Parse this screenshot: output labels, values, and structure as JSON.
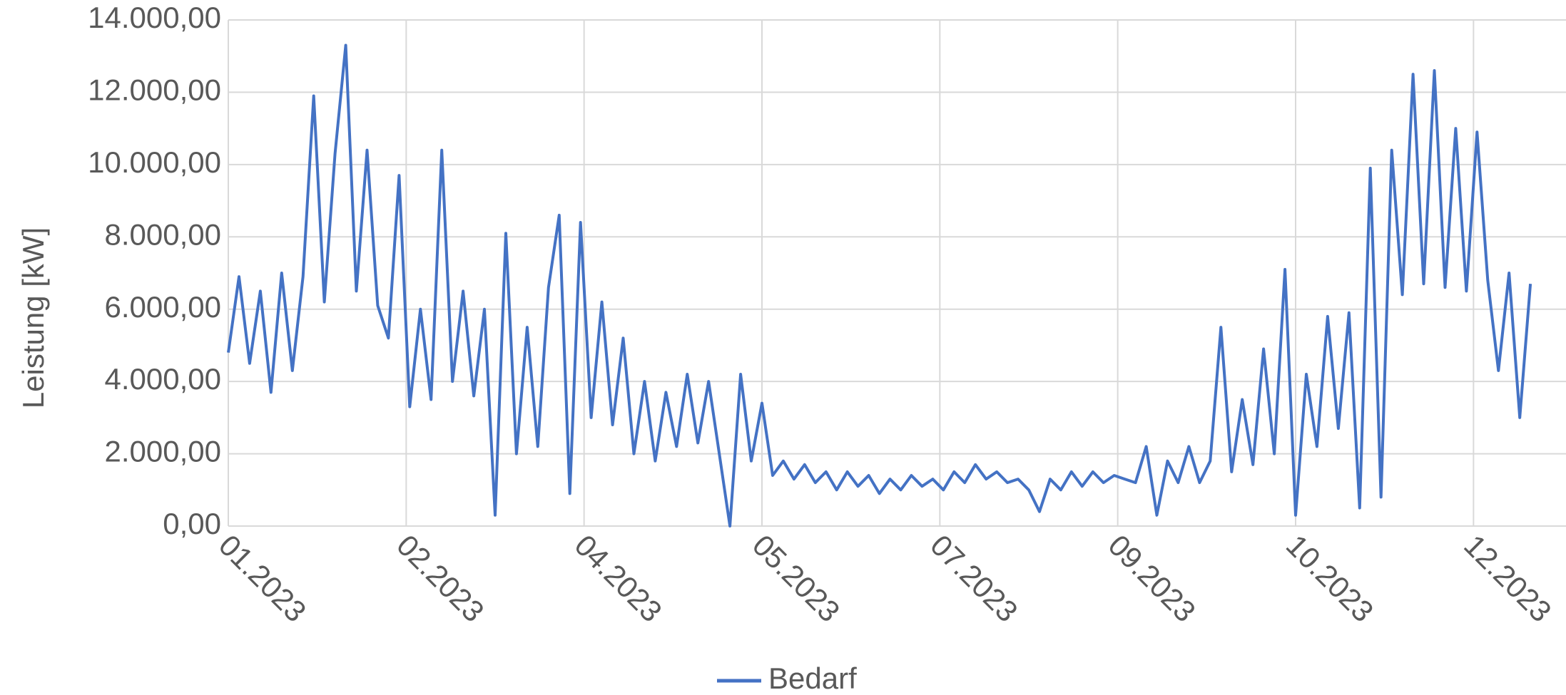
{
  "chart_data": {
    "type": "line",
    "y_label": "Leistung [kW]",
    "x": [
      0,
      3,
      6,
      9,
      12,
      15,
      18,
      21,
      24,
      27,
      30,
      33,
      36,
      39,
      42,
      45,
      48,
      51,
      54,
      57,
      60,
      63,
      66,
      69,
      72,
      75,
      78,
      81,
      84,
      87,
      90,
      93,
      96,
      99,
      102,
      105,
      108,
      111,
      114,
      117,
      120,
      123,
      126,
      129,
      132,
      135,
      138,
      141,
      144,
      147,
      150,
      153,
      156,
      159,
      162,
      165,
      168,
      171,
      174,
      177,
      180,
      183,
      186,
      189,
      192,
      195,
      198,
      201,
      204,
      207,
      210,
      213,
      216,
      219,
      222,
      225,
      228,
      231,
      234,
      237,
      240,
      243,
      246,
      249,
      252,
      255,
      258,
      261,
      264,
      267,
      270,
      273,
      276,
      279,
      282,
      285,
      288,
      291,
      294,
      297,
      300,
      303,
      306,
      309,
      312,
      315,
      318,
      321,
      324,
      327,
      330,
      333,
      336,
      339,
      342,
      345,
      348,
      351,
      354,
      357,
      360,
      363,
      366
    ],
    "series": [
      {
        "name": "Bedarf",
        "color": "#4472c4",
        "values": [
          4800,
          6900,
          4500,
          6500,
          3700,
          7000,
          4300,
          6900,
          11900,
          6200,
          10300,
          13300,
          6500,
          10400,
          6100,
          5200,
          9700,
          3300,
          6000,
          3500,
          10400,
          4000,
          6500,
          3600,
          6000,
          300,
          8100,
          2000,
          5500,
          2200,
          6600,
          8600,
          900,
          8400,
          3000,
          6200,
          2800,
          5200,
          2000,
          4000,
          1800,
          3700,
          2200,
          4200,
          2300,
          4000,
          2000,
          0,
          4200,
          1800,
          3400,
          1400,
          1800,
          1300,
          1700,
          1200,
          1500,
          1000,
          1500,
          1100,
          1400,
          900,
          1300,
          1000,
          1400,
          1100,
          1300,
          1000,
          1500,
          1200,
          1700,
          1300,
          1500,
          1200,
          1300,
          1000,
          400,
          1300,
          1000,
          1500,
          1100,
          1500,
          1200,
          1400,
          1300,
          1200,
          2200,
          300,
          1800,
          1200,
          2200,
          1200,
          1800,
          5500,
          1500,
          3500,
          1700,
          4900,
          2000,
          7100,
          300,
          4200,
          2200,
          5800,
          2700,
          5900,
          500,
          9900,
          800,
          10400,
          6400,
          12500,
          6700,
          12600,
          6600,
          11000,
          6500,
          10900,
          6800,
          4300,
          7000,
          3000,
          6700
        ]
      }
    ],
    "xlim": [
      0,
      376
    ],
    "xticks": [
      {
        "value": 0,
        "label": "01.2023"
      },
      {
        "value": 50,
        "label": "02.2023"
      },
      {
        "value": 100,
        "label": "04.2023"
      },
      {
        "value": 150,
        "label": "05.2023"
      },
      {
        "value": 200,
        "label": "07.2023"
      },
      {
        "value": 250,
        "label": "09.2023"
      },
      {
        "value": 300,
        "label": "10.2023"
      },
      {
        "value": 350,
        "label": "12.2023"
      }
    ],
    "ylim": [
      0,
      14000
    ],
    "yticks": [
      {
        "value": 0,
        "label": "0,00"
      },
      {
        "value": 2000,
        "label": "2.000,00"
      },
      {
        "value": 4000,
        "label": "4.000,00"
      },
      {
        "value": 6000,
        "label": "6.000,00"
      },
      {
        "value": 8000,
        "label": "8.000,00"
      },
      {
        "value": 10000,
        "label": "10.000,00"
      },
      {
        "value": 12000,
        "label": "12.000,00"
      },
      {
        "value": 14000,
        "label": "14.000,00"
      }
    ],
    "grid": true,
    "legend": "bottom"
  }
}
